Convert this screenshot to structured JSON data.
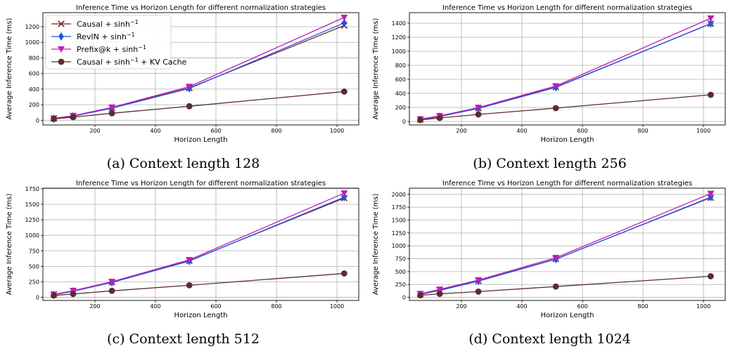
{
  "chart_data": [
    {
      "type": "line",
      "title": "Inference Time vs Horizon Length for different normalization strategies",
      "xlabel": "Horizon Length",
      "ylabel": "Average Inference Time (ms)",
      "xlim": [
        28,
        1072
      ],
      "ylim": [
        -60,
        1380
      ],
      "xticks": [
        200,
        400,
        600,
        800,
        1000
      ],
      "yticks": [
        0,
        200,
        400,
        600,
        800,
        1000,
        1200
      ],
      "grid": true,
      "legend_position": "top-left",
      "legend": true,
      "caption": "(a) Context length 128",
      "x": [
        64,
        128,
        256,
        512,
        1024
      ],
      "series": [
        {
          "name": "Causal + sinh$^{-1}$",
          "color": "#7b1f1f",
          "marker": "x",
          "values": [
            22,
            55,
            160,
            415,
            1215
          ]
        },
        {
          "name": "RevIN + sinh$^{-1}$",
          "color": "#1a57e6",
          "marker": "diamond",
          "values": [
            20,
            52,
            155,
            408,
            1248
          ]
        },
        {
          "name": "Prefix@k + sinh$^{-1}$",
          "color": "#c21cb5",
          "marker": "triangle-down",
          "values": [
            25,
            58,
            165,
            432,
            1318
          ]
        },
        {
          "name": "Causal + sinh$^{-1}$ + KV Cache",
          "color": "#5a2c2c",
          "marker": "circle",
          "values": [
            18,
            40,
            90,
            180,
            368
          ]
        }
      ]
    },
    {
      "type": "line",
      "title": "Inference Time vs Horizon Length for different normalization strategies",
      "xlabel": "Horizon Length",
      "ylabel": "Average Inference Time (ms)",
      "xlim": [
        28,
        1072
      ],
      "ylim": [
        -50,
        1550
      ],
      "xticks": [
        200,
        400,
        600,
        800,
        1000
      ],
      "yticks": [
        0,
        200,
        400,
        600,
        800,
        1000,
        1200,
        1400
      ],
      "grid": true,
      "legend": false,
      "caption": "(b) Context length 256",
      "x": [
        64,
        128,
        256,
        512,
        1024
      ],
      "series": [
        {
          "name": "Causal + sinh$^{-1}$",
          "color": "#7b1f1f",
          "marker": "x",
          "values": [
            28,
            72,
            190,
            490,
            1392
          ]
        },
        {
          "name": "RevIN + sinh$^{-1}$",
          "color": "#1a57e6",
          "marker": "diamond",
          "values": [
            26,
            70,
            185,
            485,
            1395
          ]
        },
        {
          "name": "Prefix@k + sinh$^{-1}$",
          "color": "#c21cb5",
          "marker": "triangle-down",
          "values": [
            32,
            80,
            198,
            505,
            1470
          ]
        },
        {
          "name": "Causal + sinh$^{-1}$ + KV Cache",
          "color": "#5a2c2c",
          "marker": "circle",
          "values": [
            22,
            50,
            100,
            190,
            380
          ]
        }
      ]
    },
    {
      "type": "line",
      "title": "Inference Time vs Horizon Length for different normalization strategies",
      "xlabel": "Horizon Length",
      "ylabel": "Average Inference Time (ms)",
      "xlim": [
        28,
        1072
      ],
      "ylim": [
        -50,
        1760
      ],
      "xticks": [
        200,
        400,
        600,
        800,
        1000
      ],
      "yticks": [
        0,
        250,
        500,
        750,
        1000,
        1250,
        1500,
        1750
      ],
      "grid": true,
      "legend": false,
      "caption": "(c) Context length 512",
      "x": [
        64,
        128,
        256,
        512,
        1024
      ],
      "series": [
        {
          "name": "Causal + sinh$^{-1}$",
          "color": "#7b1f1f",
          "marker": "x",
          "values": [
            45,
            100,
            245,
            590,
            1600
          ]
        },
        {
          "name": "RevIN + sinh$^{-1}$",
          "color": "#1a57e6",
          "marker": "diamond",
          "values": [
            42,
            98,
            240,
            585,
            1615
          ]
        },
        {
          "name": "Prefix@k + sinh$^{-1}$",
          "color": "#c21cb5",
          "marker": "triangle-down",
          "values": [
            48,
            108,
            252,
            605,
            1680
          ]
        },
        {
          "name": "Causal + sinh$^{-1}$ + KV Cache",
          "color": "#5a2c2c",
          "marker": "circle",
          "values": [
            30,
            55,
            105,
            195,
            385
          ]
        }
      ]
    },
    {
      "type": "line",
      "title": "Inference Time vs Horizon Length for different normalization strategies",
      "xlabel": "Horizon Length",
      "ylabel": "Average Inference Time (ms)",
      "xlim": [
        28,
        1072
      ],
      "ylim": [
        -60,
        2120
      ],
      "xticks": [
        200,
        400,
        600,
        800,
        1000
      ],
      "yticks": [
        0,
        250,
        500,
        750,
        1000,
        1250,
        1500,
        1750,
        2000
      ],
      "grid": true,
      "legend": false,
      "caption": "(d) Context length 1024",
      "x": [
        64,
        128,
        256,
        512,
        1024
      ],
      "series": [
        {
          "name": "Causal + sinh$^{-1}$",
          "color": "#7b1f1f",
          "marker": "x",
          "values": [
            60,
            140,
            320,
            745,
            1935
          ]
        },
        {
          "name": "RevIN + sinh$^{-1}$",
          "color": "#1a57e6",
          "marker": "diamond",
          "values": [
            58,
            135,
            315,
            740,
            1945
          ]
        },
        {
          "name": "Prefix@k + sinh$^{-1}$",
          "color": "#c21cb5",
          "marker": "triangle-down",
          "values": [
            70,
            155,
            335,
            770,
            2015
          ]
        },
        {
          "name": "Causal + sinh$^{-1}$ + KV Cache",
          "color": "#5a2c2c",
          "marker": "circle",
          "values": [
            40,
            68,
            112,
            210,
            410
          ]
        }
      ]
    }
  ]
}
